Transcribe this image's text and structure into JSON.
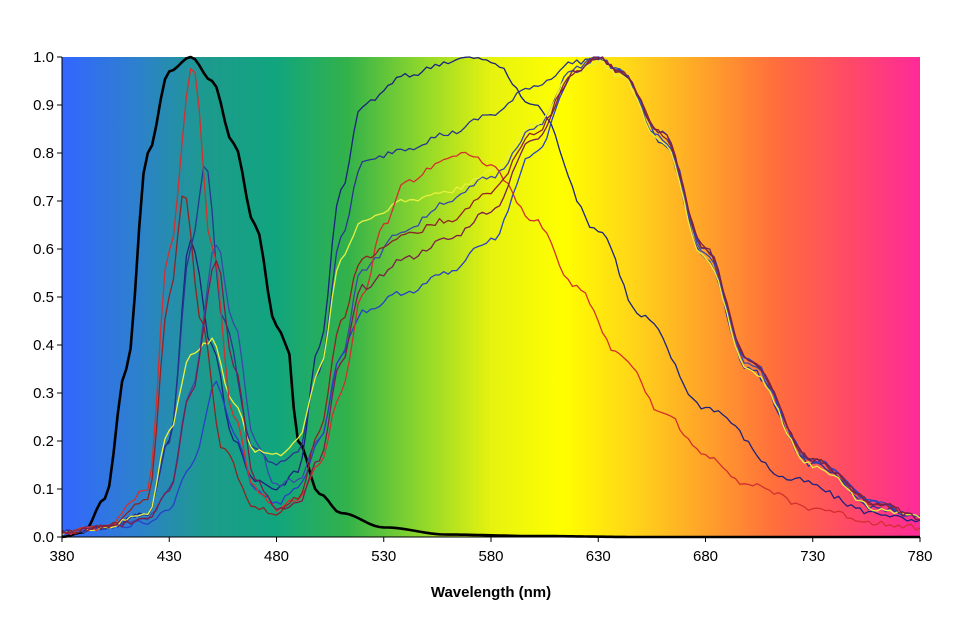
{
  "chart_data": {
    "type": "line",
    "title": "",
    "xlabel": "Wavelength (nm)",
    "ylabel": "",
    "xlim": [
      380,
      780
    ],
    "ylim": [
      0,
      1
    ],
    "x_ticks": [
      "380",
      "430",
      "480",
      "530",
      "580",
      "630",
      "680",
      "730",
      "780"
    ],
    "y_ticks": [
      "0.0",
      "0.1",
      "0.2",
      "0.3",
      "0.4",
      "0.5",
      "0.6",
      "0.7",
      "0.8",
      "0.9",
      "1.0"
    ],
    "grid": false,
    "legend": "none",
    "background": "visible-spectrum gradient",
    "background_colors": [
      "#3366ff",
      "#2e7fd0",
      "#1d9a8e",
      "#11a57e",
      "#33b24a",
      "#8cd62c",
      "#e6f20f",
      "#ffff00",
      "#ffd419",
      "#ffa22a",
      "#ff6d3d",
      "#ff4a66",
      "#ff2a99"
    ],
    "series": [
      {
        "color": "#000000",
        "x": [
          380,
          390,
          400,
          410,
          420,
          430,
          440,
          450,
          460,
          470,
          480,
          485,
          490,
          500,
          510,
          530,
          560,
          600,
          650,
          780
        ],
        "values": [
          0.0,
          0.01,
          0.08,
          0.35,
          0.8,
          0.97,
          1.0,
          0.95,
          0.82,
          0.65,
          0.44,
          0.4,
          0.2,
          0.09,
          0.05,
          0.02,
          0.005,
          0.002,
          0.0,
          0.0
        ]
      },
      {
        "color": "#1a237e",
        "x": [
          380,
          400,
          420,
          430,
          440,
          450,
          460,
          470,
          480,
          490,
          500,
          510,
          520,
          540,
          560,
          570,
          580,
          600,
          630,
          650,
          680,
          720,
          760,
          780
        ],
        "values": [
          0.01,
          0.02,
          0.05,
          0.2,
          0.62,
          0.4,
          0.2,
          0.12,
          0.1,
          0.14,
          0.4,
          0.72,
          0.9,
          0.96,
          0.99,
          1.0,
          0.99,
          0.9,
          0.64,
          0.46,
          0.27,
          0.12,
          0.05,
          0.03
        ]
      },
      {
        "color": "#283593",
        "x": [
          380,
          400,
          420,
          430,
          440,
          447,
          455,
          470,
          480,
          490,
          500,
          510,
          520,
          540,
          560,
          580,
          600,
          620,
          630,
          640,
          660,
          680,
          700,
          730,
          760,
          780
        ],
        "values": [
          0.01,
          0.02,
          0.05,
          0.2,
          0.6,
          0.78,
          0.45,
          0.18,
          0.15,
          0.18,
          0.35,
          0.62,
          0.78,
          0.81,
          0.84,
          0.88,
          0.94,
          0.99,
          1.0,
          0.97,
          0.82,
          0.58,
          0.35,
          0.15,
          0.06,
          0.04
        ]
      },
      {
        "color": "#3949ab",
        "x": [
          380,
          400,
          420,
          430,
          440,
          452,
          460,
          470,
          480,
          490,
          500,
          510,
          520,
          540,
          560,
          580,
          600,
          620,
          630,
          640,
          660,
          680,
          700,
          730,
          760,
          780
        ],
        "values": [
          0.01,
          0.02,
          0.04,
          0.1,
          0.3,
          0.61,
          0.45,
          0.2,
          0.11,
          0.12,
          0.2,
          0.38,
          0.56,
          0.64,
          0.7,
          0.75,
          0.85,
          0.98,
          1.0,
          0.97,
          0.83,
          0.59,
          0.36,
          0.16,
          0.07,
          0.04
        ]
      },
      {
        "color": "#2840c8",
        "x": [
          380,
          400,
          420,
          430,
          440,
          452,
          460,
          470,
          480,
          490,
          500,
          510,
          520,
          540,
          560,
          580,
          600,
          620,
          630,
          640,
          660,
          680,
          700,
          730,
          760,
          780
        ],
        "values": [
          0.01,
          0.02,
          0.03,
          0.06,
          0.15,
          0.32,
          0.22,
          0.1,
          0.07,
          0.1,
          0.2,
          0.38,
          0.47,
          0.51,
          0.55,
          0.62,
          0.8,
          0.97,
          1.0,
          0.97,
          0.84,
          0.6,
          0.37,
          0.16,
          0.07,
          0.04
        ]
      },
      {
        "color": "#e8f040",
        "x": [
          380,
          400,
          420,
          430,
          440,
          450,
          460,
          470,
          480,
          490,
          500,
          510,
          520,
          540,
          560,
          580,
          600,
          620,
          630,
          640,
          660,
          680,
          700,
          730,
          760,
          780
        ],
        "values": [
          0.01,
          0.02,
          0.05,
          0.22,
          0.38,
          0.41,
          0.28,
          0.18,
          0.17,
          0.2,
          0.35,
          0.58,
          0.66,
          0.7,
          0.72,
          0.76,
          0.86,
          0.97,
          0.99,
          0.96,
          0.82,
          0.58,
          0.35,
          0.15,
          0.06,
          0.04
        ]
      },
      {
        "color": "#d32f2f",
        "x": [
          380,
          400,
          420,
          430,
          441,
          450,
          460,
          470,
          480,
          490,
          500,
          510,
          520,
          530,
          540,
          560,
          570,
          580,
          600,
          620,
          640,
          660,
          680,
          700,
          730,
          760,
          780
        ],
        "values": [
          0.01,
          0.02,
          0.1,
          0.6,
          0.98,
          0.6,
          0.25,
          0.1,
          0.06,
          0.08,
          0.15,
          0.3,
          0.5,
          0.65,
          0.74,
          0.79,
          0.8,
          0.77,
          0.66,
          0.52,
          0.38,
          0.26,
          0.17,
          0.11,
          0.06,
          0.03,
          0.02
        ]
      },
      {
        "color": "#8e2424",
        "x": [
          380,
          400,
          420,
          430,
          437,
          445,
          455,
          470,
          480,
          490,
          500,
          510,
          520,
          540,
          560,
          580,
          600,
          620,
          630,
          640,
          660,
          680,
          700,
          730,
          760,
          780
        ],
        "values": [
          0.01,
          0.02,
          0.08,
          0.5,
          0.72,
          0.45,
          0.18,
          0.06,
          0.05,
          0.08,
          0.22,
          0.45,
          0.58,
          0.63,
          0.66,
          0.72,
          0.84,
          0.97,
          1.0,
          0.97,
          0.84,
          0.6,
          0.37,
          0.16,
          0.07,
          0.04
        ]
      },
      {
        "color": "#7b1f4a",
        "x": [
          380,
          400,
          420,
          430,
          440,
          452,
          460,
          470,
          480,
          490,
          500,
          510,
          520,
          540,
          560,
          580,
          600,
          620,
          630,
          640,
          660,
          680,
          700,
          730,
          760,
          780
        ],
        "values": [
          0.01,
          0.02,
          0.04,
          0.1,
          0.3,
          0.58,
          0.36,
          0.12,
          0.06,
          0.07,
          0.16,
          0.36,
          0.52,
          0.58,
          0.62,
          0.68,
          0.83,
          0.97,
          1.0,
          0.97,
          0.84,
          0.6,
          0.37,
          0.16,
          0.07,
          0.04
        ]
      }
    ]
  }
}
